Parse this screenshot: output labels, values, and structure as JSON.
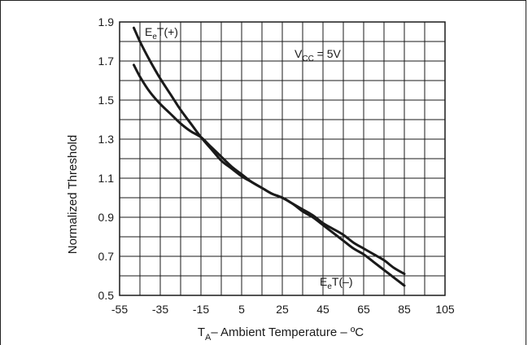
{
  "chart_data": {
    "type": "line",
    "xlabel": {
      "main": "T",
      "sub": "A",
      "rest": "– Ambient Temperature – ºC"
    },
    "ylabel": "Normalized Threshold",
    "xlim": [
      -55,
      105
    ],
    "ylim": [
      0.5,
      1.9
    ],
    "x_ticks": [
      "-55",
      "-35",
      "-15",
      "5",
      "25",
      "45",
      "65",
      "85",
      "105"
    ],
    "y_ticks": [
      "1.9",
      "1.7",
      "1.5",
      "1.3",
      "1.1",
      "0.9",
      "0.7",
      "0.5"
    ],
    "grid": true,
    "series": [
      {
        "name": "EeT(+)",
        "label": {
          "main": "E",
          "sub": "e",
          "rest": "T(+)"
        },
        "x": [
          -48,
          -45,
          -40,
          -35,
          -30,
          -25,
          -20,
          -15,
          -10,
          -5,
          0,
          5,
          10,
          15,
          20,
          25,
          30,
          35,
          40,
          45,
          50,
          55,
          60,
          65,
          70,
          75,
          80,
          85
        ],
        "y": [
          1.87,
          1.8,
          1.7,
          1.61,
          1.53,
          1.45,
          1.38,
          1.31,
          1.25,
          1.19,
          1.15,
          1.11,
          1.08,
          1.05,
          1.02,
          1.0,
          0.97,
          0.93,
          0.9,
          0.86,
          0.82,
          0.78,
          0.74,
          0.71,
          0.67,
          0.63,
          0.59,
          0.55
        ]
      },
      {
        "name": "EeT(–)",
        "label": {
          "main": "E",
          "sub": "e",
          "rest": "T(–)"
        },
        "x": [
          -48,
          -45,
          -40,
          -35,
          -30,
          -25,
          -20,
          -15,
          -10,
          -5,
          0,
          5,
          10,
          15,
          20,
          25,
          30,
          35,
          40,
          45,
          50,
          55,
          60,
          65,
          70,
          75,
          80,
          85
        ],
        "y": [
          1.68,
          1.62,
          1.54,
          1.48,
          1.43,
          1.38,
          1.34,
          1.31,
          1.26,
          1.21,
          1.16,
          1.12,
          1.08,
          1.05,
          1.02,
          1.0,
          0.97,
          0.94,
          0.91,
          0.87,
          0.84,
          0.81,
          0.77,
          0.74,
          0.71,
          0.68,
          0.64,
          0.61
        ]
      }
    ],
    "annotation": {
      "main": "V",
      "sub": "CC",
      "rest": " = 5V"
    }
  }
}
